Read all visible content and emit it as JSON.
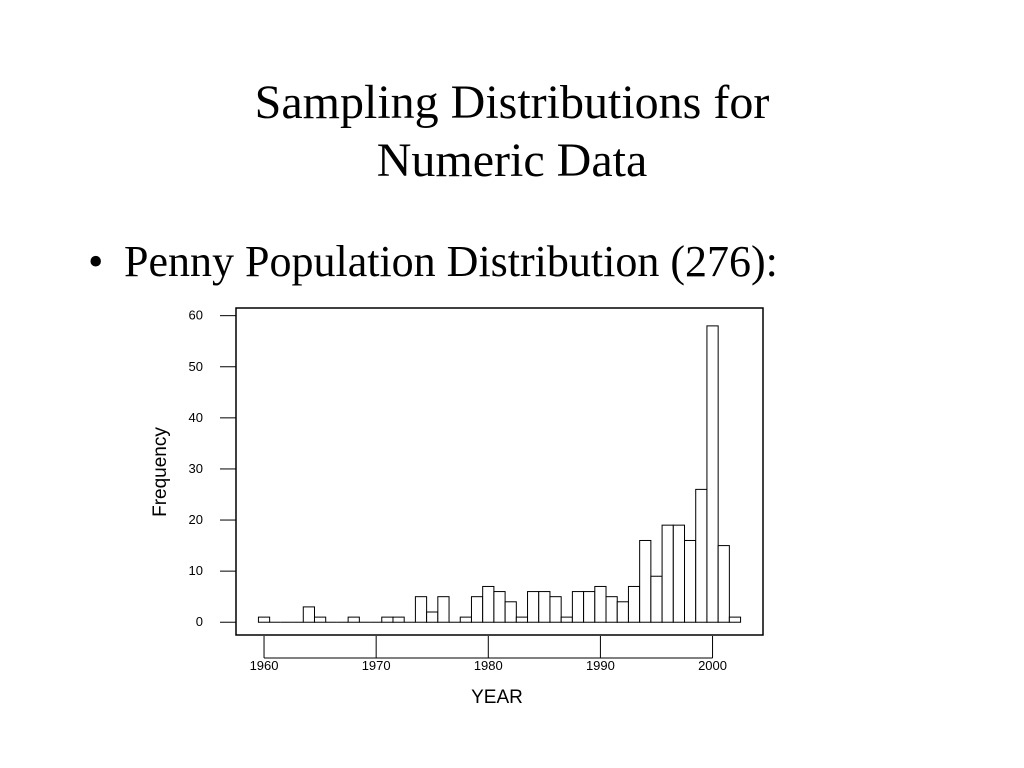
{
  "slide": {
    "title_line1": "Sampling Distributions for",
    "title_line2": "Numeric Data",
    "bullet_symbol": "•",
    "bullet_text": "Penny Population Distribution (276):"
  },
  "chart_data": {
    "type": "bar",
    "subtype": "histogram",
    "xlabel": "YEAR",
    "ylabel": "Frequency",
    "xlim": [
      1957.5,
      2004.5
    ],
    "ylim": [
      -2.5,
      61.5
    ],
    "xticks": [
      1960,
      1970,
      1980,
      1990,
      2000
    ],
    "yticks": [
      0,
      10,
      20,
      30,
      40,
      50,
      60
    ],
    "x": [
      1960,
      1961,
      1962,
      1963,
      1964,
      1965,
      1966,
      1967,
      1968,
      1969,
      1970,
      1971,
      1972,
      1973,
      1974,
      1975,
      1976,
      1977,
      1978,
      1979,
      1980,
      1981,
      1982,
      1983,
      1984,
      1985,
      1986,
      1987,
      1988,
      1989,
      1990,
      1991,
      1992,
      1993,
      1994,
      1995,
      1996,
      1997,
      1998,
      1999,
      2000,
      2001,
      2002
    ],
    "values": [
      1,
      0,
      0,
      0,
      3,
      1,
      0,
      0,
      1,
      0,
      0,
      1,
      1,
      0,
      5,
      2,
      5,
      0,
      1,
      5,
      7,
      6,
      4,
      1,
      6,
      6,
      5,
      1,
      6,
      6,
      7,
      5,
      4,
      7,
      16,
      9,
      19,
      19,
      16,
      26,
      58,
      15,
      1
    ],
    "grid": false,
    "legend": "none"
  }
}
